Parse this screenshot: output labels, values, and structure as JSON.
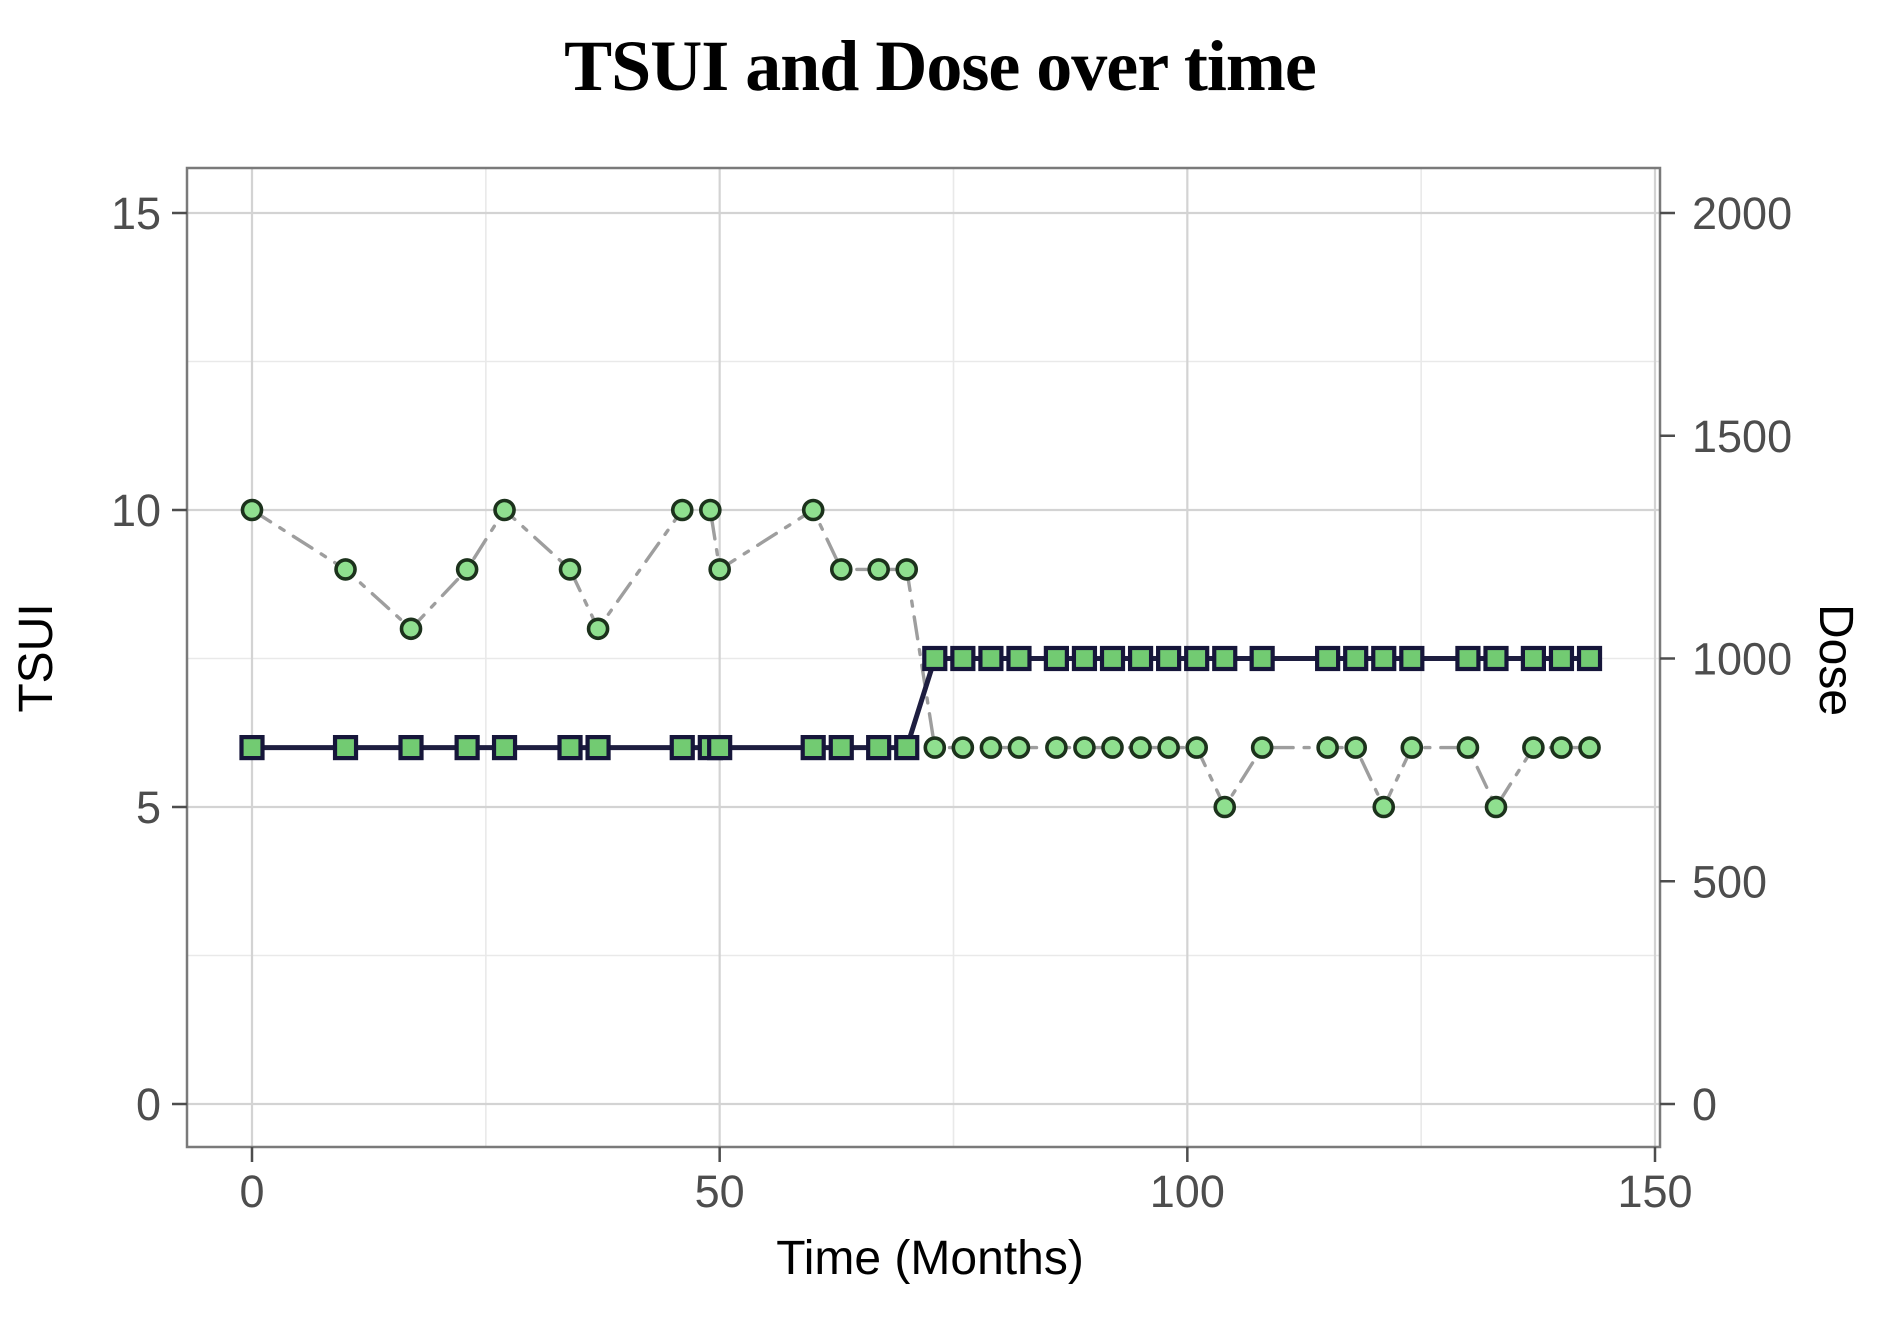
{
  "title": "TSUI and Dose over time",
  "axes": {
    "x": {
      "label": "Time (Months)",
      "ticks": [
        0,
        50,
        100,
        150
      ],
      "minor_ticks": [
        25,
        75,
        125
      ],
      "range": [
        -7,
        150.5
      ]
    },
    "y_left": {
      "label": "TSUI",
      "ticks": [
        0,
        5,
        10,
        15
      ],
      "minor_ticks": [
        2.5,
        7.5,
        12.5
      ],
      "range": [
        -0.72,
        15.76
      ]
    },
    "y_right": {
      "label": "Dose",
      "ticks": [
        0,
        500,
        1000,
        1500,
        2000
      ],
      "range": [
        -96,
        2101
      ]
    }
  },
  "chart_data": {
    "type": "line",
    "title": "TSUI and Dose over time",
    "xlabel": "Time (Months)",
    "ylabel_left": "TSUI",
    "ylabel_right": "Dose",
    "xlim": [
      0,
      150
    ],
    "ylim_left": [
      0,
      15
    ],
    "ylim_right": [
      0,
      2000
    ],
    "grid": "on",
    "legend": "none",
    "x": [
      0,
      10,
      17,
      23,
      27,
      34,
      37,
      46,
      49,
      50,
      60,
      63,
      67,
      70,
      73,
      76,
      79,
      82,
      86,
      89,
      92,
      95,
      98,
      101,
      104,
      108,
      115,
      118,
      121,
      124,
      130,
      133,
      137,
      140,
      143
    ],
    "series": [
      {
        "name": "TSUI",
        "axis": "left",
        "marker": "circle",
        "line_style": "dash-dot",
        "line_color": "#9e9e9e",
        "marker_fill": "#8fdf8f",
        "marker_stroke": "#1c321c",
        "values": [
          10,
          9,
          8,
          9,
          10,
          9,
          8,
          10,
          10,
          9,
          10,
          9,
          9,
          9,
          6,
          6,
          6,
          6,
          6,
          6,
          6,
          6,
          6,
          6,
          5,
          6,
          6,
          6,
          5,
          6,
          6,
          5,
          6,
          6,
          6
        ]
      },
      {
        "name": "Dose",
        "axis": "right",
        "marker": "square",
        "line_style": "solid",
        "line_color": "#1e1e40",
        "marker_fill": "#72cb72",
        "marker_stroke": "#16163a",
        "values": [
          800,
          800,
          800,
          800,
          800,
          800,
          800,
          800,
          800,
          800,
          800,
          800,
          800,
          800,
          1000,
          1000,
          1000,
          1000,
          1000,
          1000,
          1000,
          1000,
          1000,
          1000,
          1000,
          1000,
          1000,
          1000,
          1000,
          1000,
          1000,
          1000,
          1000,
          1000,
          1000
        ]
      }
    ]
  },
  "colors": {
    "background": "#ffffff",
    "panel_border": "#7a7a7a",
    "grid_major": "#d3d3d3",
    "grid_minor": "#e9e9e9",
    "tick_mark": "#4d4d4d",
    "tick_label": "#4d4d4d",
    "title_text": "#000000"
  }
}
